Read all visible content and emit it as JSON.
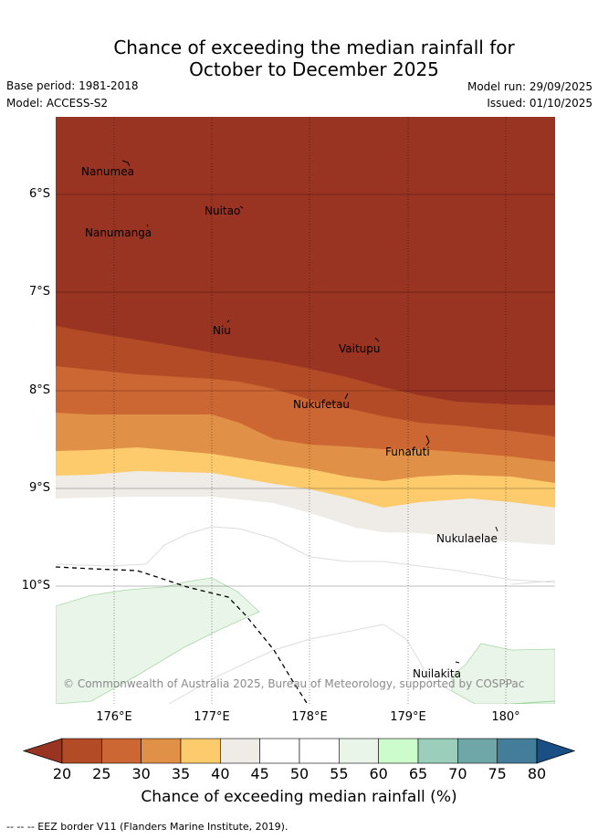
{
  "title_line1": "Chance of exceeding the median rainfall for",
  "title_line2": "October to December 2025",
  "base_period": "Base period: 1981-2018",
  "model": "Model: ACCESS-S2",
  "model_run": "Model run: 29/09/2025",
  "issued": "Issued: 01/10/2025",
  "lat_labels": [
    "6°S",
    "7°S",
    "8°S",
    "9°S",
    "10°S"
  ],
  "lon_labels": [
    "176°E",
    "177°E",
    "178°E",
    "179°E",
    "180°"
  ],
  "places": {
    "nanumea": "Nanumea",
    "nuitao": "Nuitao",
    "nanumanga": "Nanumanga",
    "niu": "Niu",
    "vaitupu": "Vaitupu",
    "nukufetau": "Nukufetau",
    "funafuti": "Funafuti",
    "nukulaelae": "Nukulaelae",
    "nuilakita": "Nuilakita"
  },
  "copyright": "© Commonwealth of Australia 2025, Bureau of Meteorology, supported by COSPPac",
  "colorbar": {
    "ticks": [
      "20",
      "25",
      "30",
      "35",
      "40",
      "45",
      "50",
      "55",
      "60",
      "65",
      "70",
      "75",
      "80"
    ],
    "colors": [
      "#b34b27",
      "#cc6633",
      "#e09147",
      "#fdcb6b",
      "#efebe7",
      "#ffffff",
      "#ffffff",
      "#eaf5e9",
      "#ccfccc",
      "#9ccfbb",
      "#6fa6a7",
      "#447d99"
    ],
    "under_color": "#993322",
    "over_color": "#1a4f86",
    "title": "Chance of exceeding median rainfall (%)"
  },
  "footnote": "--  --  -- EEZ border V11 (Flanders Marine Institute, 2019).",
  "colors": {
    "band_lt20": "#993322",
    "band_20_25": "#b34b27",
    "band_25_30": "#cc6633",
    "band_30_35": "#e09147",
    "band_35_40": "#fdcb6b",
    "band_40_45": "#efebe7",
    "band_55_60": "#eaf5e9"
  }
}
